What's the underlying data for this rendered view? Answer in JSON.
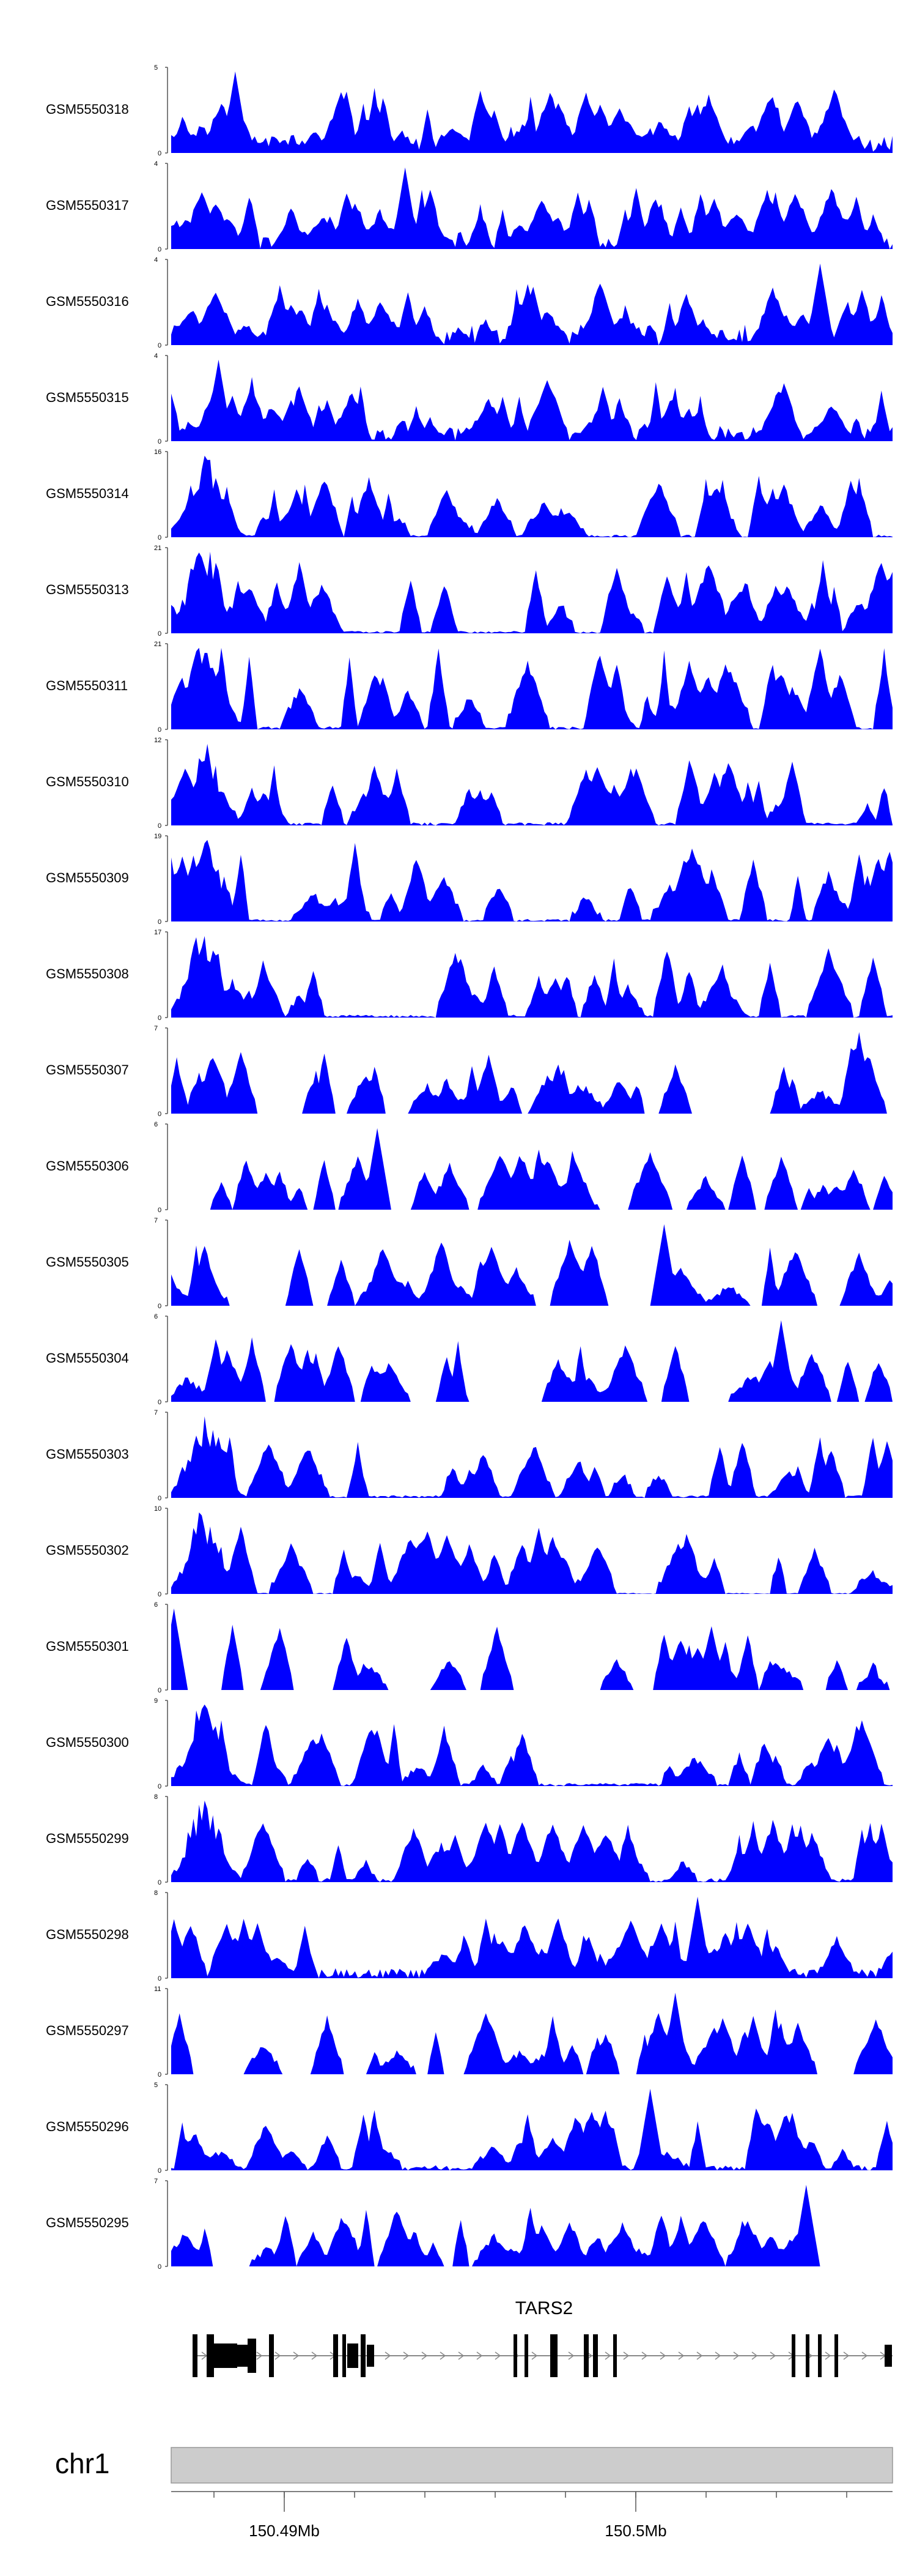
{
  "chart_data": {
    "type": "area",
    "description_note": "",
    "tracks": [
      {
        "label": "GSM5550318",
        "ymax": 5
      },
      {
        "label": "GSM5550317",
        "ymax": 4
      },
      {
        "label": "GSM5550316",
        "ymax": 4
      },
      {
        "label": "GSM5550315",
        "ymax": 4
      },
      {
        "label": "GSM5550314",
        "ymax": 16
      },
      {
        "label": "GSM5550313",
        "ymax": 21
      },
      {
        "label": "GSM5550311",
        "ymax": 21
      },
      {
        "label": "GSM5550310",
        "ymax": 12
      },
      {
        "label": "GSM5550309",
        "ymax": 19
      },
      {
        "label": "GSM5550308",
        "ymax": 17
      },
      {
        "label": "GSM5550307",
        "ymax": 7
      },
      {
        "label": "GSM5550306",
        "ymax": 6
      },
      {
        "label": "GSM5550305",
        "ymax": 7
      },
      {
        "label": "GSM5550304",
        "ymax": 6
      },
      {
        "label": "GSM5550303",
        "ymax": 7
      },
      {
        "label": "GSM5550302",
        "ymax": 10
      },
      {
        "label": "GSM5550301",
        "ymax": 6
      },
      {
        "label": "GSM5550300",
        "ymax": 9
      },
      {
        "label": "GSM5550299",
        "ymax": 8
      },
      {
        "label": "GSM5550298",
        "ymax": 8
      },
      {
        "label": "GSM5550297",
        "ymax": 11
      },
      {
        "label": "GSM5550296",
        "ymax": 5
      },
      {
        "label": "GSM5550295",
        "ymax": 7
      }
    ],
    "y_axis_min": 0,
    "gene": {
      "name": "TARS2",
      "strand": "+"
    },
    "chromosome": "chr1",
    "x_ticks": [
      "150.49Mb",
      "150.5Mb"
    ],
    "colors": {
      "signal": "#0000ff",
      "ideogram": "#cccccc",
      "gene": "#000000"
    }
  }
}
